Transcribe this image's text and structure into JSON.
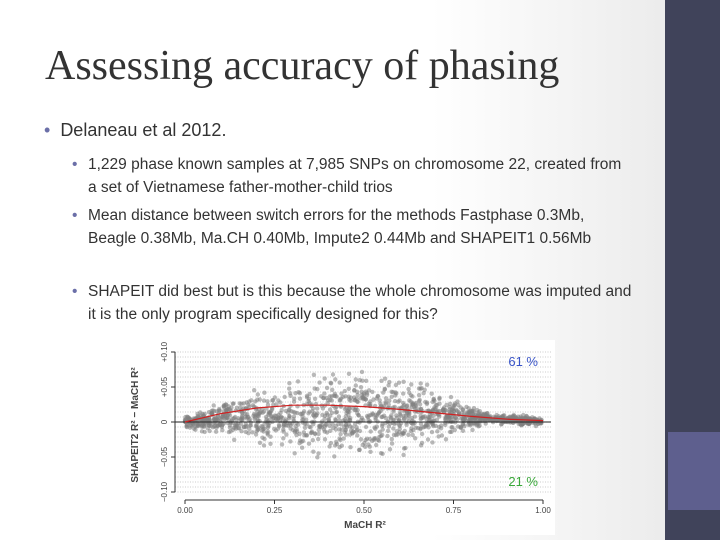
{
  "title": "Assessing accuracy of phasing",
  "bullets": [
    {
      "text": "Delaneau et al 2012.",
      "sub": [
        "1,229 phase known samples at 7,985 SNPs on chromosome 22, created from a set of Vietnamese father-mother-child trios",
        "Mean distance between switch errors for the methods Fastphase 0.3Mb, Beagle 0.38Mb, Ma.CH 0.40Mb, Impute2 0.44Mb and SHAPEIT1 0.56Mb",
        "SHAPEIT did best but is this because the whole chromosome was imputed and it is the only program specifically designed for this?"
      ]
    }
  ],
  "chart_data": {
    "type": "line",
    "x_label": "MaCH R²",
    "y_label": "SHAPEIT2 R² − MaCH R²",
    "xlim": [
      0,
      1
    ],
    "ylim": [
      -0.1,
      0.1
    ],
    "xticks": [
      {
        "value": 0,
        "label": "0.00"
      },
      {
        "value": 0.25,
        "label": "0.25"
      },
      {
        "value": 0.5,
        "label": "0.50"
      },
      {
        "value": 0.75,
        "label": "0.75"
      },
      {
        "value": 1,
        "label": "1.00"
      }
    ],
    "yticks": [
      {
        "value": -0.1,
        "label": "−0.10"
      },
      {
        "value": -0.05,
        "label": "−0.05"
      },
      0,
      {
        "value": 0.05,
        "label": "+0.05"
      },
      {
        "value": 0.1,
        "label": "+0.10"
      }
    ],
    "x": [
      0,
      0.1,
      0.2,
      0.3,
      0.4,
      0.5,
      0.6,
      0.7,
      0.8,
      0.9,
      1
    ],
    "values": [
      0,
      0.012,
      0.02,
      0.024,
      0.024,
      0.022,
      0.018,
      0.013,
      0.008,
      0.004,
      0.002
    ],
    "color": "#d02020",
    "annotations": [
      {
        "text": "61 %",
        "color": "#3a55c8"
      },
      {
        "text": "21 %",
        "color": "#3aa83a"
      }
    ]
  }
}
